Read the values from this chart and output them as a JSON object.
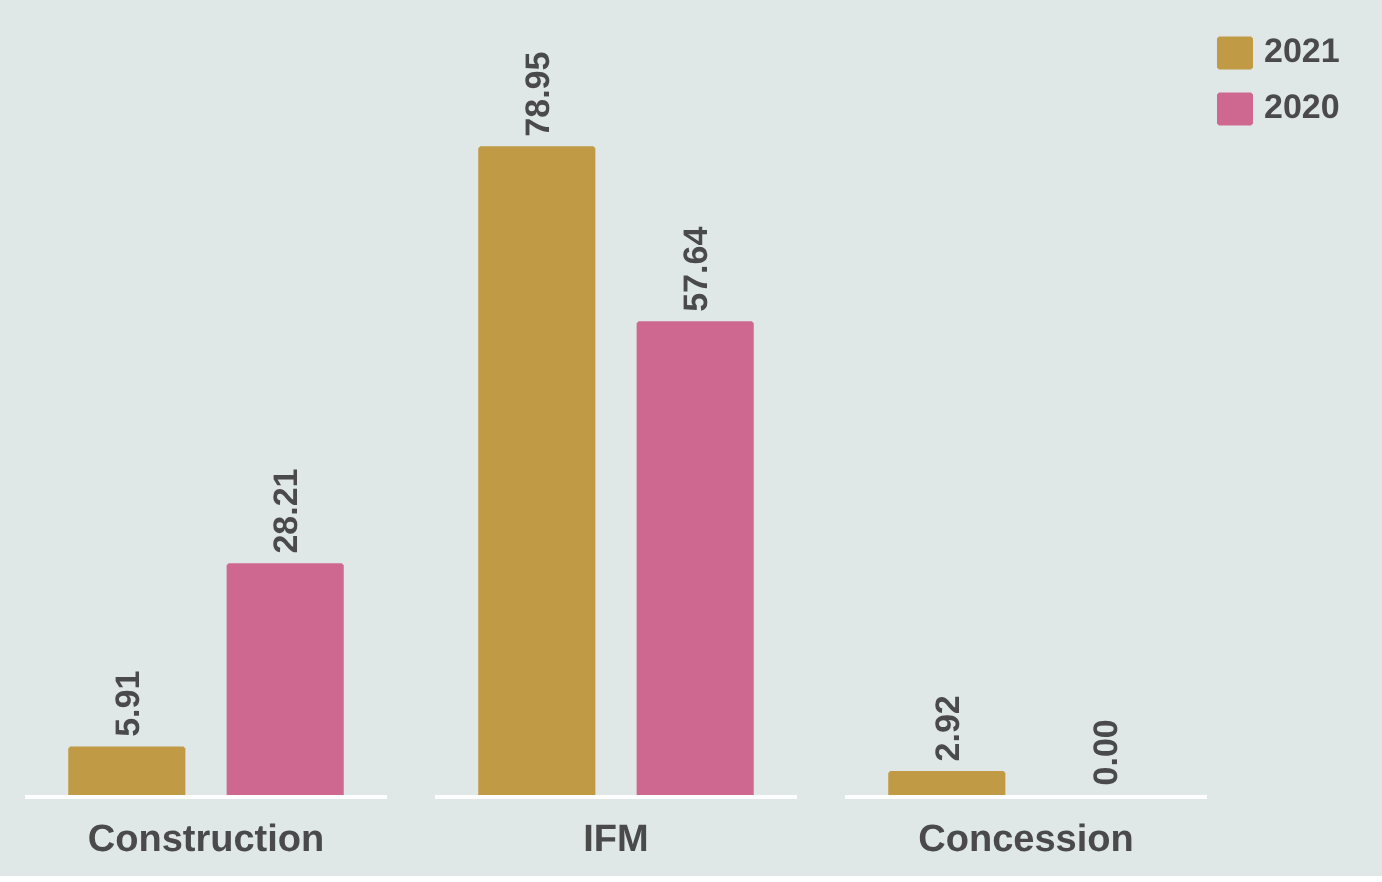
{
  "chart_data": {
    "type": "bar",
    "categories": [
      "Construction",
      "IFM",
      "Concession"
    ],
    "series": [
      {
        "name": "2021",
        "color": "#c09a45",
        "values": [
          5.91,
          78.95,
          2.92
        ],
        "value_labels": [
          "5.91",
          "78.95",
          "2.92"
        ]
      },
      {
        "name": "2020",
        "color": "#cf6890",
        "values": [
          28.21,
          57.64,
          0.0
        ],
        "value_labels": [
          "28.21",
          "57.64",
          "0.00"
        ]
      }
    ],
    "legend": "right",
    "grid": false
  }
}
